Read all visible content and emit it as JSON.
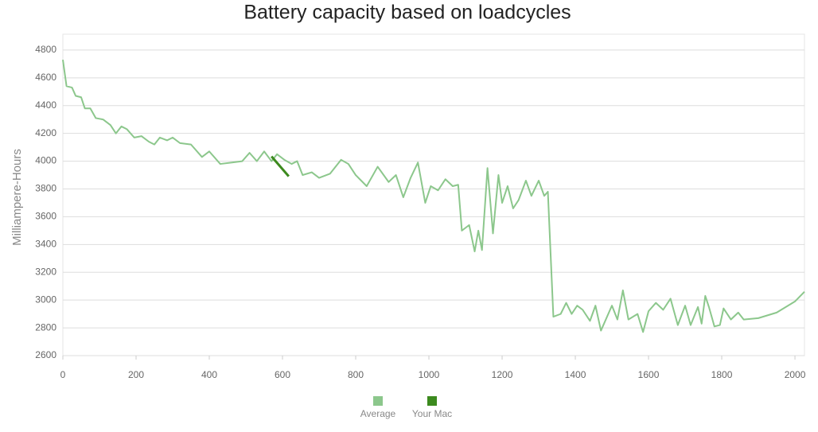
{
  "chart_data": {
    "type": "line",
    "title": "Battery capacity based on loadcycles",
    "y_label": "Milliampere-Hours",
    "xlim": [
      0,
      2026
    ],
    "ylim": [
      2600,
      4914
    ],
    "xticks": [
      0,
      200,
      400,
      600,
      800,
      1000,
      1200,
      1400,
      1600,
      1800,
      2000
    ],
    "yticks": [
      2600,
      2800,
      3000,
      3200,
      3400,
      3600,
      3800,
      4000,
      4200,
      4400,
      4600,
      4800
    ],
    "grid": true,
    "series": [
      {
        "name": "Average",
        "color": "#8cc78c",
        "x": [
          0,
          10,
          25,
          35,
          50,
          60,
          75,
          90,
          110,
          130,
          145,
          160,
          175,
          195,
          215,
          235,
          250,
          265,
          285,
          300,
          320,
          350,
          380,
          400,
          430,
          460,
          490,
          510,
          530,
          550,
          570,
          585,
          605,
          625,
          640,
          655,
          680,
          700,
          730,
          760,
          780,
          800,
          830,
          860,
          890,
          910,
          930,
          950,
          970,
          990,
          1005,
          1025,
          1045,
          1065,
          1080,
          1090,
          1110,
          1125,
          1135,
          1145,
          1160,
          1175,
          1190,
          1200,
          1215,
          1230,
          1245,
          1265,
          1280,
          1300,
          1315,
          1325,
          1340,
          1360,
          1375,
          1390,
          1405,
          1420,
          1440,
          1455,
          1470,
          1500,
          1515,
          1530,
          1545,
          1570,
          1585,
          1600,
          1620,
          1640,
          1660,
          1680,
          1700,
          1715,
          1735,
          1745,
          1755,
          1765,
          1780,
          1795,
          1805,
          1825,
          1845,
          1860,
          1900,
          1950,
          2000,
          2026
        ],
        "values": [
          4730,
          4540,
          4530,
          4470,
          4460,
          4380,
          4380,
          4310,
          4300,
          4260,
          4200,
          4250,
          4230,
          4170,
          4180,
          4140,
          4120,
          4170,
          4150,
          4170,
          4130,
          4120,
          4030,
          4070,
          3980,
          3990,
          4000,
          4060,
          4000,
          4070,
          4000,
          4050,
          4010,
          3980,
          4000,
          3900,
          3920,
          3880,
          3910,
          4010,
          3980,
          3900,
          3820,
          3960,
          3850,
          3900,
          3740,
          3880,
          3990,
          3700,
          3820,
          3790,
          3870,
          3820,
          3830,
          3500,
          3540,
          3350,
          3500,
          3360,
          3950,
          3480,
          3900,
          3700,
          3820,
          3660,
          3720,
          3860,
          3750,
          3860,
          3750,
          3780,
          2880,
          2900,
          2980,
          2900,
          2960,
          2930,
          2850,
          2960,
          2780,
          2960,
          2860,
          3070,
          2860,
          2900,
          2770,
          2920,
          2980,
          2930,
          3010,
          2820,
          2960,
          2820,
          2950,
          2830,
          3030,
          2950,
          2810,
          2820,
          2940,
          2860,
          2910,
          2860,
          2870,
          2910,
          2990,
          3060
        ]
      },
      {
        "name": "Your Mac",
        "color": "#3c8a1e",
        "x": [
          570,
          617
        ],
        "values": [
          4034,
          3891
        ]
      }
    ]
  }
}
